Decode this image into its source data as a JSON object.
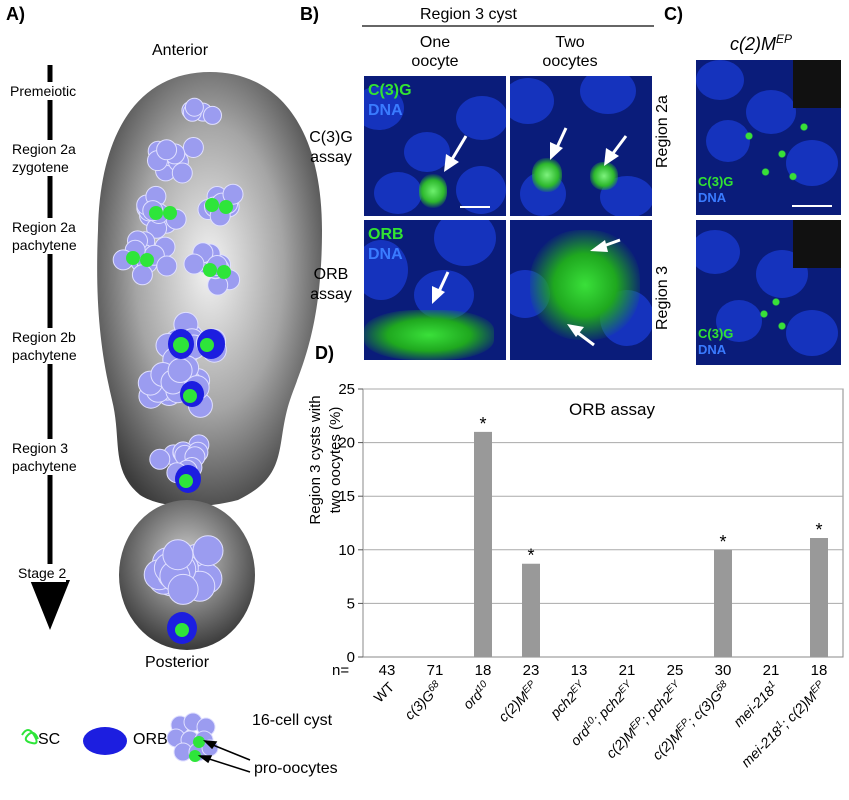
{
  "panelA": {
    "label": "A)",
    "anterior": "Anterior",
    "posterior": "Posterior",
    "stages": [
      {
        "l1": "Premeiotic",
        "l2": ""
      },
      {
        "l1": "Region 2a",
        "l2": "zygotene"
      },
      {
        "l1": "Region 2a",
        "l2": "pachytene"
      },
      {
        "l1": "Region 2b",
        "l2": "pachytene"
      },
      {
        "l1": "Region 3",
        "l2": "pachytene"
      },
      {
        "l1": "Stage 2",
        "l2": ""
      }
    ],
    "legend": {
      "sc": "SC",
      "orb": "ORB",
      "cyst": "16-cell cyst",
      "pro": "pro-oocytes"
    }
  },
  "panelB": {
    "label": "B)",
    "header": "Region 3 cyst",
    "col1_l1": "One",
    "col1_l2": "oocyte",
    "col2_l1": "Two",
    "col2_l2": "oocytes",
    "row1_l1": "C(3)G",
    "row1_l2": "assay",
    "row2_l1": "ORB",
    "row2_l2": "assay",
    "c3g": "C(3)G",
    "dna": "DNA",
    "orb": "ORB"
  },
  "panelC": {
    "label": "C)",
    "title": "c(2)M",
    "title_sup": "EP",
    "row1": "Region 2a",
    "row2": "Region 3",
    "c3g": "C(3)G",
    "dna": "DNA"
  },
  "panelD": {
    "label": "D)"
  },
  "chart_data": {
    "type": "bar",
    "title": "ORB assay",
    "ylabel_l1": "Region 3 cysts with",
    "ylabel_l2": "two oocytes (%)",
    "ylim": [
      0,
      25
    ],
    "yticks": [
      "0",
      "5",
      "10",
      "15",
      "20",
      "25"
    ],
    "grid": true,
    "bar_color": "#999999",
    "n_prefix": "n=",
    "categories": [
      {
        "base": "WT",
        "sup": "",
        "base2": "",
        "sup2": "",
        "italic": false
      },
      {
        "base": "c(3)G",
        "sup": "68",
        "base2": "",
        "sup2": "",
        "italic": true
      },
      {
        "base": "ord",
        "sup": "10",
        "base2": "",
        "sup2": "",
        "italic": true
      },
      {
        "base": "c(2)M",
        "sup": "EP",
        "base2": "",
        "sup2": "",
        "italic": true
      },
      {
        "base": "pch2",
        "sup": "EY",
        "base2": "",
        "sup2": "",
        "italic": true
      },
      {
        "base": "ord",
        "sup": "10",
        "base2": "; pch2",
        "sup2": "EY",
        "italic": true
      },
      {
        "base": "c(2)M",
        "sup": "EP",
        "base2": "; pch2",
        "sup2": "EY",
        "italic": true
      },
      {
        "base": "c(2)M",
        "sup": "EP",
        "base2": "; c(3)G",
        "sup2": "68",
        "italic": true
      },
      {
        "base": "mei-218",
        "sup": "1",
        "base2": "",
        "sup2": "",
        "italic": true
      },
      {
        "base": "mei-218",
        "sup": "1",
        "base2": "; c(2)M",
        "sup2": "EP",
        "italic": true
      }
    ],
    "values": [
      0,
      0,
      21,
      8.7,
      0,
      0,
      0,
      10,
      0,
      11.1
    ],
    "n": [
      "43",
      "71",
      "18",
      "23",
      "13",
      "21",
      "25",
      "30",
      "21",
      "18"
    ],
    "significant": [
      false,
      false,
      true,
      true,
      false,
      false,
      false,
      true,
      false,
      true
    ],
    "star": "*"
  }
}
